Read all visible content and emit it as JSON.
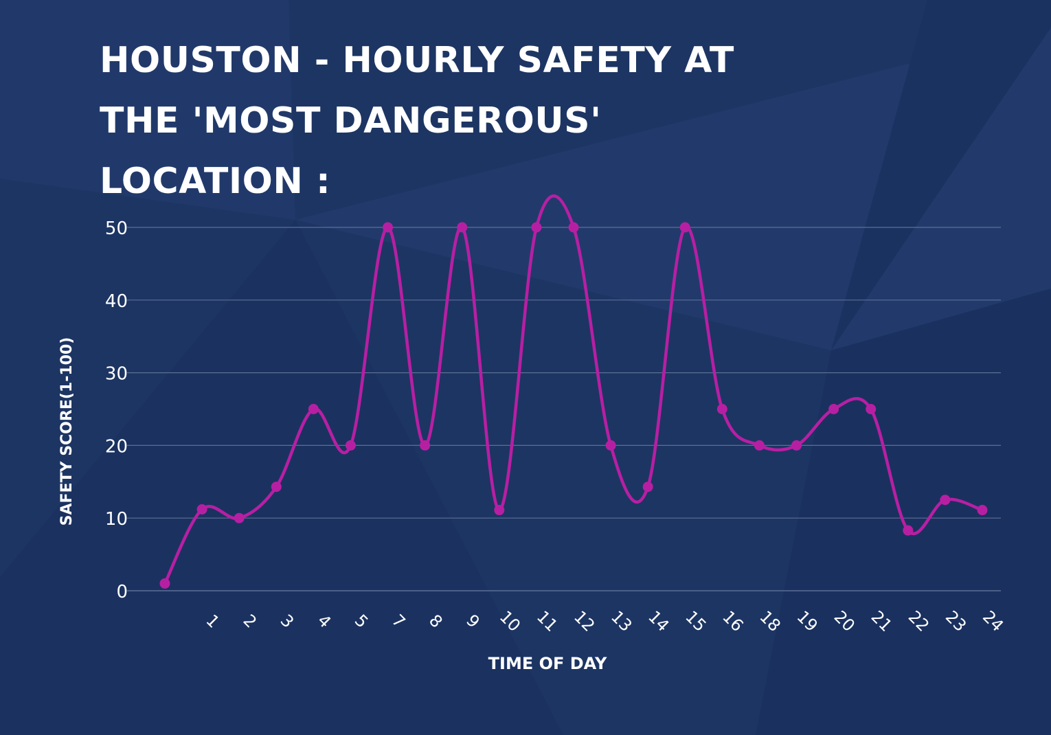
{
  "colors": {
    "background": "#1d3563",
    "line": "#b71fa3",
    "grid": "#5c6f96",
    "text": "#ffffff"
  },
  "chart_data": {
    "type": "line",
    "title_lines": [
      "HOUSTON - HOURLY SAFETY AT",
      "THE 'MOST DANGEROUS'",
      "LOCATION :"
    ],
    "xlabel": "TIME OF DAY",
    "ylabel": "SAFETY SCORE(1-100)",
    "ylim": [
      0,
      50
    ],
    "yticks": [
      0,
      10,
      20,
      30,
      40,
      50
    ],
    "grid": true,
    "x": [
      "",
      "1",
      "2",
      "3",
      "4",
      "5",
      "7",
      "8",
      "9",
      "10",
      "11",
      "12",
      "13",
      "14",
      "15",
      "16",
      "18",
      "19",
      "20",
      "21",
      "22",
      "23",
      "24"
    ],
    "series": [
      {
        "values": [
          1,
          11.2,
          10,
          14.3,
          25,
          20,
          50,
          20,
          50,
          11.1,
          50,
          50,
          20,
          14.3,
          50,
          25,
          20,
          20,
          25,
          25,
          8.3,
          12.5,
          11.1
        ]
      }
    ]
  }
}
